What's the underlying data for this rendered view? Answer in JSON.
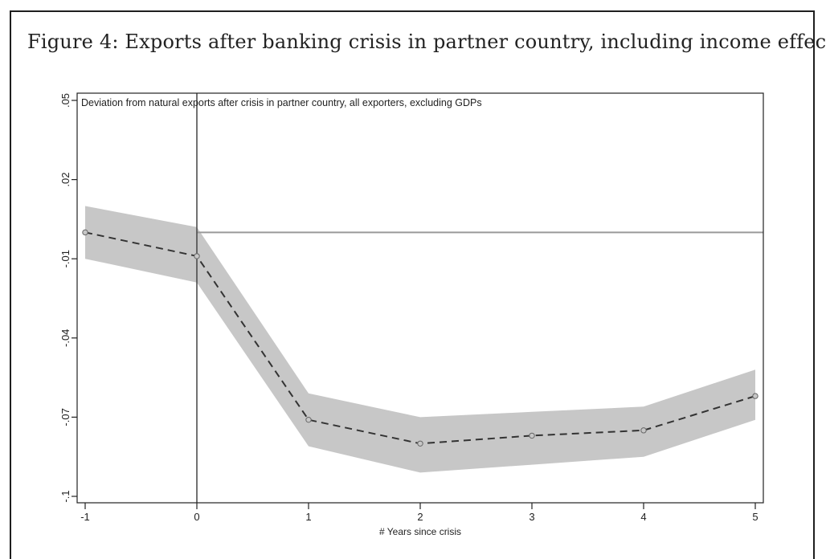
{
  "figure": {
    "title": "Figure 4: Exports after banking crisis in partner country, including income effec"
  },
  "chart_data": {
    "type": "line",
    "title": "",
    "annotation": "Deviation from natural exports after crisis in partner country, all exporters, excluding GDPs",
    "xlabel": "# Years since crisis",
    "ylabel": "",
    "x": [
      -1,
      0,
      1,
      2,
      3,
      4,
      5
    ],
    "xticks": [
      "-1",
      "0",
      "1",
      "2",
      "3",
      "4",
      "5"
    ],
    "yticks": [
      0.05,
      0.02,
      -0.01,
      -0.04,
      -0.07,
      -0.1
    ],
    "ytick_labels": [
      ".05",
      ".02",
      "-.01",
      "-.04",
      "-.07",
      "-.1"
    ],
    "xlim": [
      -1,
      5
    ],
    "ylim": [
      -0.102,
      0.053
    ],
    "series": [
      {
        "values": [
          0.0,
          -0.009,
          -0.071,
          -0.08,
          -0.077,
          -0.075,
          -0.062
        ],
        "lower": [
          -0.01,
          -0.019,
          -0.081,
          -0.091,
          -0.088,
          -0.085,
          -0.071
        ],
        "upper": [
          0.01,
          0.002,
          -0.061,
          -0.07,
          -0.068,
          -0.066,
          -0.052
        ],
        "line_style": "dashed",
        "marker": "hollow-circle"
      }
    ],
    "reference_lines": {
      "horizontal_y": 0,
      "vertical_x": 0
    },
    "grid": false,
    "legend": "none",
    "colors": {
      "band": "#c7c7c7",
      "line": "#333333",
      "reference_line": "#9a9a9a",
      "vertical_line": "#444444",
      "axis": "#222222"
    }
  }
}
